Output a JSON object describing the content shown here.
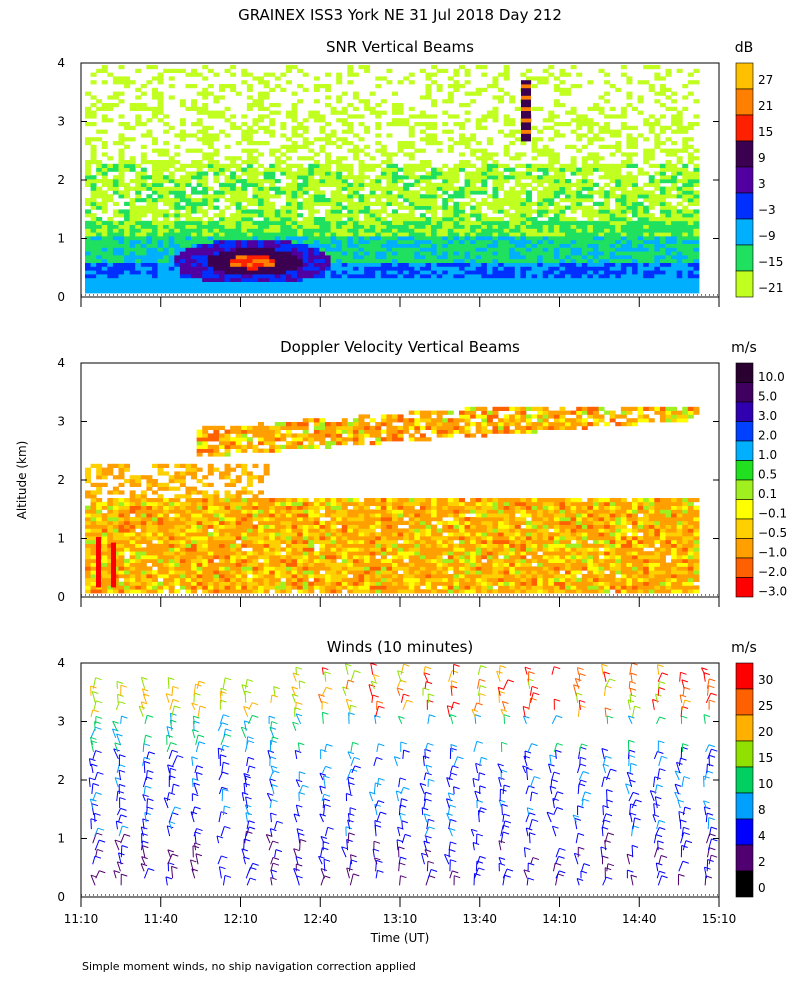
{
  "page": {
    "title": "GRAINEX ISS3 York NE  31 Jul 2018 Day 212",
    "x_label": "Time (UT)",
    "y_label": "Altitude (km)",
    "footnote": "Simple moment winds, no ship navigation correction applied"
  },
  "chart_data": [
    {
      "type": "heatmap",
      "title": "SNR Vertical Beams",
      "unit": "dB",
      "xlabel": "Time (UT)",
      "ylabel": "Altitude (km)",
      "x_ticks": [
        "11:10",
        "11:40",
        "12:10",
        "12:40",
        "13:10",
        "13:40",
        "14:10",
        "14:40",
        "15:10"
      ],
      "y_ticks": [
        0,
        1,
        2,
        3,
        4
      ],
      "xlim": [
        "11:10",
        "15:10"
      ],
      "ylim": [
        0,
        4
      ],
      "colorbar": {
        "labels": [
          "27",
          "21",
          "15",
          "9",
          "3",
          "−3",
          "−9",
          "−15",
          "−21"
        ],
        "colors": [
          "#ffc000",
          "#ff8000",
          "#ff2000",
          "#3c0050",
          "#5000a0",
          "#0030ff",
          "#00b0ff",
          "#20e060",
          "#c0ff20"
        ]
      }
    },
    {
      "type": "heatmap",
      "title": "Doppler Velocity Vertical Beams",
      "unit": "m/s",
      "xlabel": "Time (UT)",
      "ylabel": "Altitude (km)",
      "x_ticks": [
        "11:10",
        "11:40",
        "12:10",
        "12:40",
        "13:10",
        "13:40",
        "14:10",
        "14:40",
        "15:10"
      ],
      "y_ticks": [
        0,
        1,
        2,
        3,
        4
      ],
      "xlim": [
        "11:10",
        "15:10"
      ],
      "ylim": [
        0,
        4
      ],
      "colorbar": {
        "labels": [
          "10.0",
          "5.0",
          "3.0",
          "2.0",
          "1.0",
          "0.5",
          "0.1",
          "−0.1",
          "−0.5",
          "−1.0",
          "−2.0",
          "−3.0"
        ],
        "colors": [
          "#2a0030",
          "#400060",
          "#3000b0",
          "#0040ff",
          "#00b0ff",
          "#20e020",
          "#a0f020",
          "#ffff00",
          "#ffd000",
          "#ffa000",
          "#ff6000",
          "#ff0000"
        ]
      }
    },
    {
      "type": "scatter",
      "title": "Winds (10 minutes)",
      "unit": "m/s",
      "xlabel": "Time (UT)",
      "ylabel": "Altitude (km)",
      "x_ticks": [
        "11:10",
        "11:40",
        "12:10",
        "12:40",
        "13:10",
        "13:40",
        "14:10",
        "14:40",
        "15:10"
      ],
      "y_ticks": [
        0,
        1,
        2,
        3,
        4
      ],
      "xlim": [
        "11:10",
        "15:10"
      ],
      "ylim": [
        0,
        4
      ],
      "colorbar": {
        "labels": [
          "30",
          "25",
          "20",
          "15",
          "10",
          "8",
          "4",
          "2",
          "0"
        ],
        "colors": [
          "#ff0000",
          "#ff6000",
          "#ffb000",
          "#90e000",
          "#00d060",
          "#00a0ff",
          "#0000ff",
          "#500070",
          "#000000"
        ]
      }
    }
  ]
}
